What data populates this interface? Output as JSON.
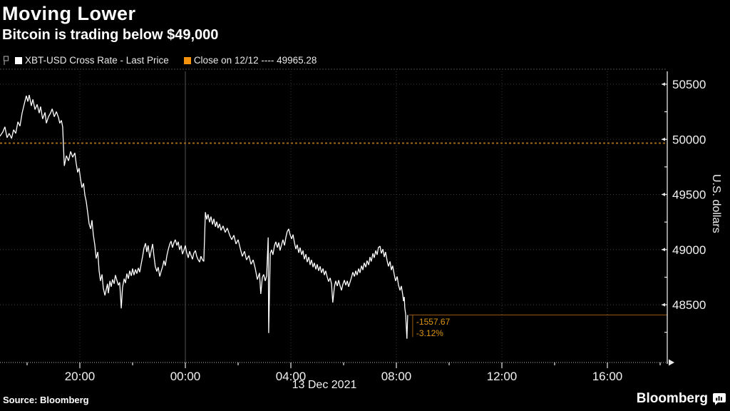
{
  "header": {
    "title": "Moving Lower",
    "subtitle": "Bitcoin is trading below $49,000",
    "legend": [
      {
        "label": "XBT-USD Cross Rate - Last Price",
        "color": "#ffffff"
      },
      {
        "label": "Close on 12/12 ---- 49965.28",
        "color": "#f5920d"
      }
    ]
  },
  "footer": {
    "source": "Source:  Bloomberg",
    "brand": "Bloomberg"
  },
  "colors": {
    "background": "#000000",
    "line": "#ffffff",
    "accent_orange": "#f5920d",
    "close_line_orange": "#a16a12",
    "annotation_orange": "#dd9512",
    "grid": "#3d3d3d"
  },
  "chart_data": {
    "type": "line",
    "title": "Moving Lower",
    "subtitle": "Bitcoin is trading below $49,000",
    "series_name": "XBT-USD Cross Rate - Last Price",
    "ylabel": "U.S. dollars",
    "xlabel_date": "13 Dec 2021",
    "close_line": {
      "label": "Close on 12/12",
      "value": 49965.28
    },
    "last_point": {
      "value": 48407.61,
      "change": "-1557.67",
      "change_pct": "-3.12%"
    },
    "grid": true,
    "x_unit": "hours from 13 Dec 2021 00:00",
    "xlim": [
      -7.03,
      18.32
    ],
    "ylim": [
      47980,
      50615
    ],
    "x_ticks": [
      {
        "t": -4,
        "label": "20:00"
      },
      {
        "t": 0,
        "label": "00:00"
      },
      {
        "t": 4,
        "label": "04:00"
      },
      {
        "t": 8,
        "label": "08:00"
      },
      {
        "t": 12,
        "label": "12:00"
      },
      {
        "t": 16,
        "label": "16:00"
      }
    ],
    "x_minor_ticks": [
      -6,
      -2,
      2,
      6,
      10,
      14,
      18
    ],
    "y_ticks": [
      48500,
      49000,
      49500,
      50000,
      50500
    ],
    "y_minor_ticks": [
      48250,
      48750,
      49250,
      49750,
      50250
    ],
    "points": [
      [
        -7.03,
        50028
      ],
      [
        -6.92,
        50067
      ],
      [
        -6.84,
        50113
      ],
      [
        -6.76,
        50015
      ],
      [
        -6.68,
        50054
      ],
      [
        -6.59,
        50008
      ],
      [
        -6.51,
        50087
      ],
      [
        -6.43,
        50054
      ],
      [
        -6.35,
        50159
      ],
      [
        -6.27,
        50120
      ],
      [
        -6.19,
        50238
      ],
      [
        -6.11,
        50316
      ],
      [
        -6.03,
        50395
      ],
      [
        -5.97,
        50343
      ],
      [
        -5.92,
        50402
      ],
      [
        -5.84,
        50303
      ],
      [
        -5.78,
        50362
      ],
      [
        -5.7,
        50270
      ],
      [
        -5.62,
        50316
      ],
      [
        -5.54,
        50238
      ],
      [
        -5.49,
        50297
      ],
      [
        -5.41,
        50185
      ],
      [
        -5.32,
        50244
      ],
      [
        -5.27,
        50146
      ],
      [
        -5.19,
        50205
      ],
      [
        -5.11,
        50238
      ],
      [
        -5.05,
        50277
      ],
      [
        -4.97,
        50205
      ],
      [
        -4.89,
        50251
      ],
      [
        -4.81,
        50198
      ],
      [
        -4.76,
        50146
      ],
      [
        -4.7,
        50172
      ],
      [
        -4.65,
        50113
      ],
      [
        -4.59,
        49759
      ],
      [
        -4.51,
        49851
      ],
      [
        -4.43,
        49805
      ],
      [
        -4.35,
        49890
      ],
      [
        -4.27,
        49838
      ],
      [
        -4.19,
        49877
      ],
      [
        -4.14,
        49785
      ],
      [
        -4.08,
        49700
      ],
      [
        -4.03,
        49739
      ],
      [
        -3.97,
        49634
      ],
      [
        -3.92,
        49562
      ],
      [
        -3.86,
        49602
      ],
      [
        -3.81,
        49497
      ],
      [
        -3.76,
        49438
      ],
      [
        -3.7,
        49333
      ],
      [
        -3.65,
        49234
      ],
      [
        -3.59,
        49188
      ],
      [
        -3.54,
        49267
      ],
      [
        -3.49,
        49136
      ],
      [
        -3.43,
        49038
      ],
      [
        -3.38,
        48920
      ],
      [
        -3.32,
        48979
      ],
      [
        -3.27,
        48808
      ],
      [
        -3.22,
        48716
      ],
      [
        -3.16,
        48775
      ],
      [
        -3.11,
        48651
      ],
      [
        -3.05,
        48585
      ],
      [
        -3.0,
        48638
      ],
      [
        -2.95,
        48690
      ],
      [
        -2.92,
        48605
      ],
      [
        -2.86,
        48716
      ],
      [
        -2.81,
        48664
      ],
      [
        -2.76,
        48730
      ],
      [
        -2.7,
        48690
      ],
      [
        -2.65,
        48769
      ],
      [
        -2.59,
        48716
      ],
      [
        -2.54,
        48677
      ],
      [
        -2.49,
        48703
      ],
      [
        -2.43,
        48467
      ],
      [
        -2.38,
        48657
      ],
      [
        -2.32,
        48736
      ],
      [
        -2.27,
        48697
      ],
      [
        -2.22,
        48782
      ],
      [
        -2.16,
        48736
      ],
      [
        -2.11,
        48808
      ],
      [
        -2.05,
        48762
      ],
      [
        -2.0,
        48828
      ],
      [
        -1.95,
        48769
      ],
      [
        -1.89,
        48821
      ],
      [
        -1.84,
        48782
      ],
      [
        -1.78,
        48834
      ],
      [
        -1.73,
        48795
      ],
      [
        -1.68,
        48861
      ],
      [
        -1.62,
        48940
      ],
      [
        -1.57,
        49012
      ],
      [
        -1.51,
        49058
      ],
      [
        -1.46,
        48979
      ],
      [
        -1.41,
        49038
      ],
      [
        -1.35,
        48926
      ],
      [
        -1.3,
        48985
      ],
      [
        -1.24,
        49051
      ],
      [
        -1.19,
        48940
      ],
      [
        -1.14,
        48848
      ],
      [
        -1.08,
        48802
      ],
      [
        -1.03,
        48841
      ],
      [
        -0.97,
        48756
      ],
      [
        -0.92,
        48802
      ],
      [
        -0.86,
        48848
      ],
      [
        -0.81,
        48900
      ],
      [
        -0.76,
        48854
      ],
      [
        -0.7,
        48946
      ],
      [
        -0.65,
        48998
      ],
      [
        -0.59,
        49051
      ],
      [
        -0.54,
        49077
      ],
      [
        -0.49,
        49018
      ],
      [
        -0.43,
        49064
      ],
      [
        -0.38,
        49090
      ],
      [
        -0.32,
        49038
      ],
      [
        -0.27,
        49071
      ],
      [
        -0.22,
        48998
      ],
      [
        -0.16,
        49038
      ],
      [
        -0.11,
        48959
      ],
      [
        -0.05,
        48998
      ],
      [
        0.0,
        49038
      ],
      [
        0.05,
        48972
      ],
      [
        0.11,
        48926
      ],
      [
        0.16,
        48985
      ],
      [
        0.22,
        48946
      ],
      [
        0.27,
        48913
      ],
      [
        0.32,
        48966
      ],
      [
        0.38,
        48992
      ],
      [
        0.43,
        48940
      ],
      [
        0.49,
        48907
      ],
      [
        0.54,
        48887
      ],
      [
        0.59,
        48940
      ],
      [
        0.65,
        48907
      ],
      [
        0.7,
        48893
      ],
      [
        0.76,
        49339
      ],
      [
        0.81,
        49274
      ],
      [
        0.86,
        49320
      ],
      [
        0.92,
        49248
      ],
      [
        0.97,
        49300
      ],
      [
        1.03,
        49228
      ],
      [
        1.08,
        49280
      ],
      [
        1.14,
        49208
      ],
      [
        1.19,
        49254
      ],
      [
        1.24,
        49195
      ],
      [
        1.3,
        49234
      ],
      [
        1.35,
        49175
      ],
      [
        1.43,
        49215
      ],
      [
        1.51,
        49156
      ],
      [
        1.59,
        49195
      ],
      [
        1.68,
        49130
      ],
      [
        1.76,
        49090
      ],
      [
        1.84,
        49130
      ],
      [
        1.92,
        49051
      ],
      [
        2.0,
        49090
      ],
      [
        2.08,
        49011
      ],
      [
        2.16,
        48939
      ],
      [
        2.24,
        48985
      ],
      [
        2.32,
        48907
      ],
      [
        2.41,
        48946
      ],
      [
        2.49,
        48867
      ],
      [
        2.57,
        48907
      ],
      [
        2.65,
        48828
      ],
      [
        2.73,
        48729
      ],
      [
        2.81,
        48788
      ],
      [
        2.86,
        48598
      ],
      [
        2.92,
        48749
      ],
      [
        2.97,
        48775
      ],
      [
        3.03,
        48716
      ],
      [
        3.08,
        48762
      ],
      [
        3.14,
        49110
      ],
      [
        3.16,
        48244
      ],
      [
        3.22,
        48966
      ],
      [
        3.27,
        48998
      ],
      [
        3.32,
        48953
      ],
      [
        3.38,
        49038
      ],
      [
        3.43,
        49071
      ],
      [
        3.49,
        49018
      ],
      [
        3.54,
        49064
      ],
      [
        3.59,
        48992
      ],
      [
        3.65,
        49044
      ],
      [
        3.7,
        49090
      ],
      [
        3.76,
        49038
      ],
      [
        3.81,
        49110
      ],
      [
        3.86,
        49162
      ],
      [
        3.92,
        49188
      ],
      [
        3.97,
        49136
      ],
      [
        4.03,
        49097
      ],
      [
        4.08,
        49136
      ],
      [
        4.14,
        49057
      ],
      [
        4.19,
        49005
      ],
      [
        4.24,
        49044
      ],
      [
        4.3,
        48972
      ],
      [
        4.35,
        49018
      ],
      [
        4.41,
        48953
      ],
      [
        4.46,
        48992
      ],
      [
        4.51,
        48913
      ],
      [
        4.57,
        48959
      ],
      [
        4.62,
        48887
      ],
      [
        4.68,
        48933
      ],
      [
        4.73,
        48861
      ],
      [
        4.78,
        48907
      ],
      [
        4.84,
        48841
      ],
      [
        4.89,
        48880
      ],
      [
        4.95,
        48821
      ],
      [
        5.0,
        48867
      ],
      [
        5.05,
        48808
      ],
      [
        5.11,
        48848
      ],
      [
        5.16,
        48789
      ],
      [
        5.22,
        48828
      ],
      [
        5.27,
        48769
      ],
      [
        5.32,
        48808
      ],
      [
        5.38,
        48749
      ],
      [
        5.43,
        48710
      ],
      [
        5.49,
        48743
      ],
      [
        5.54,
        48690
      ],
      [
        5.59,
        48520
      ],
      [
        5.65,
        48664
      ],
      [
        5.7,
        48716
      ],
      [
        5.76,
        48670
      ],
      [
        5.81,
        48723
      ],
      [
        5.86,
        48677
      ],
      [
        5.92,
        48631
      ],
      [
        5.97,
        48684
      ],
      [
        6.03,
        48723
      ],
      [
        6.08,
        48677
      ],
      [
        6.14,
        48716
      ],
      [
        6.19,
        48664
      ],
      [
        6.24,
        48703
      ],
      [
        6.3,
        48749
      ],
      [
        6.35,
        48795
      ],
      [
        6.41,
        48756
      ],
      [
        6.46,
        48808
      ],
      [
        6.51,
        48769
      ],
      [
        6.57,
        48828
      ],
      [
        6.62,
        48789
      ],
      [
        6.68,
        48854
      ],
      [
        6.73,
        48815
      ],
      [
        6.78,
        48880
      ],
      [
        6.84,
        48841
      ],
      [
        6.89,
        48900
      ],
      [
        6.95,
        48861
      ],
      [
        7.0,
        48933
      ],
      [
        7.05,
        48893
      ],
      [
        7.11,
        48966
      ],
      [
        7.16,
        48926
      ],
      [
        7.22,
        48992
      ],
      [
        7.27,
        48953
      ],
      [
        7.32,
        49018
      ],
      [
        7.38,
        49031
      ],
      [
        7.43,
        48966
      ],
      [
        7.49,
        49005
      ],
      [
        7.54,
        48933
      ],
      [
        7.59,
        48979
      ],
      [
        7.65,
        48900
      ],
      [
        7.7,
        48848
      ],
      [
        7.76,
        48893
      ],
      [
        7.81,
        48815
      ],
      [
        7.86,
        48854
      ],
      [
        7.92,
        48775
      ],
      [
        7.97,
        48716
      ],
      [
        8.03,
        48756
      ],
      [
        8.08,
        48677
      ],
      [
        8.14,
        48631
      ],
      [
        8.19,
        48670
      ],
      [
        8.24,
        48592
      ],
      [
        8.27,
        48533
      ],
      [
        8.3,
        48572
      ],
      [
        8.32,
        48474
      ],
      [
        8.35,
        48415
      ],
      [
        8.4,
        48192
      ],
      [
        8.43,
        48407.61
      ]
    ]
  }
}
